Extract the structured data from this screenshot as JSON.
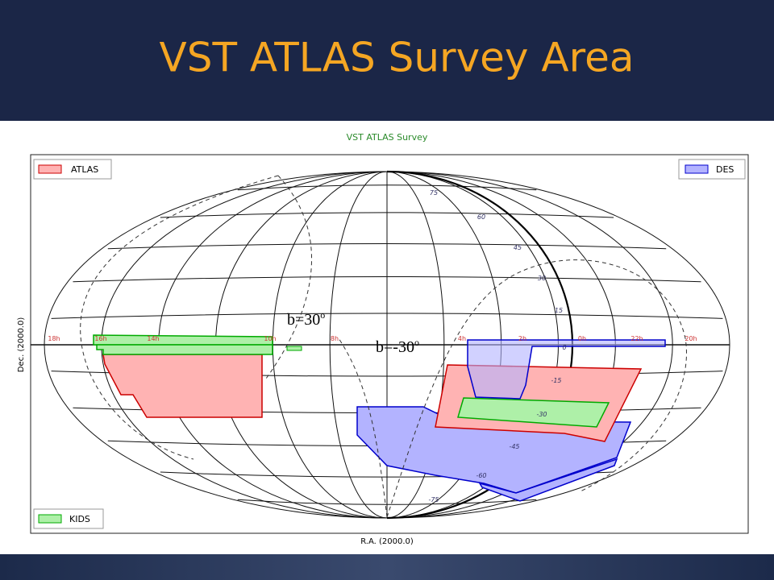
{
  "slide": {
    "title": "VST ATLAS Survey Area"
  },
  "figure": {
    "title": "VST ATLAS Survey",
    "xlabel": "R.A. (2000.0)",
    "ylabel": "Dec. (2000.0)",
    "legend": [
      "ATLAS",
      "DES",
      "KIDS"
    ],
    "ra_labels": [
      "18h",
      "16h",
      "14h",
      "10h",
      "8h",
      "4h",
      "2h",
      "0h",
      "22h",
      "20h"
    ],
    "dec_labels": [
      "75",
      "60",
      "45",
      "30",
      "15",
      "0",
      "-15",
      "-30",
      "-45",
      "-60",
      "-75"
    ],
    "annotations": [
      {
        "text": "b=30",
        "sup": "o"
      },
      {
        "text": "b=-30",
        "sup": "o"
      }
    ]
  }
}
